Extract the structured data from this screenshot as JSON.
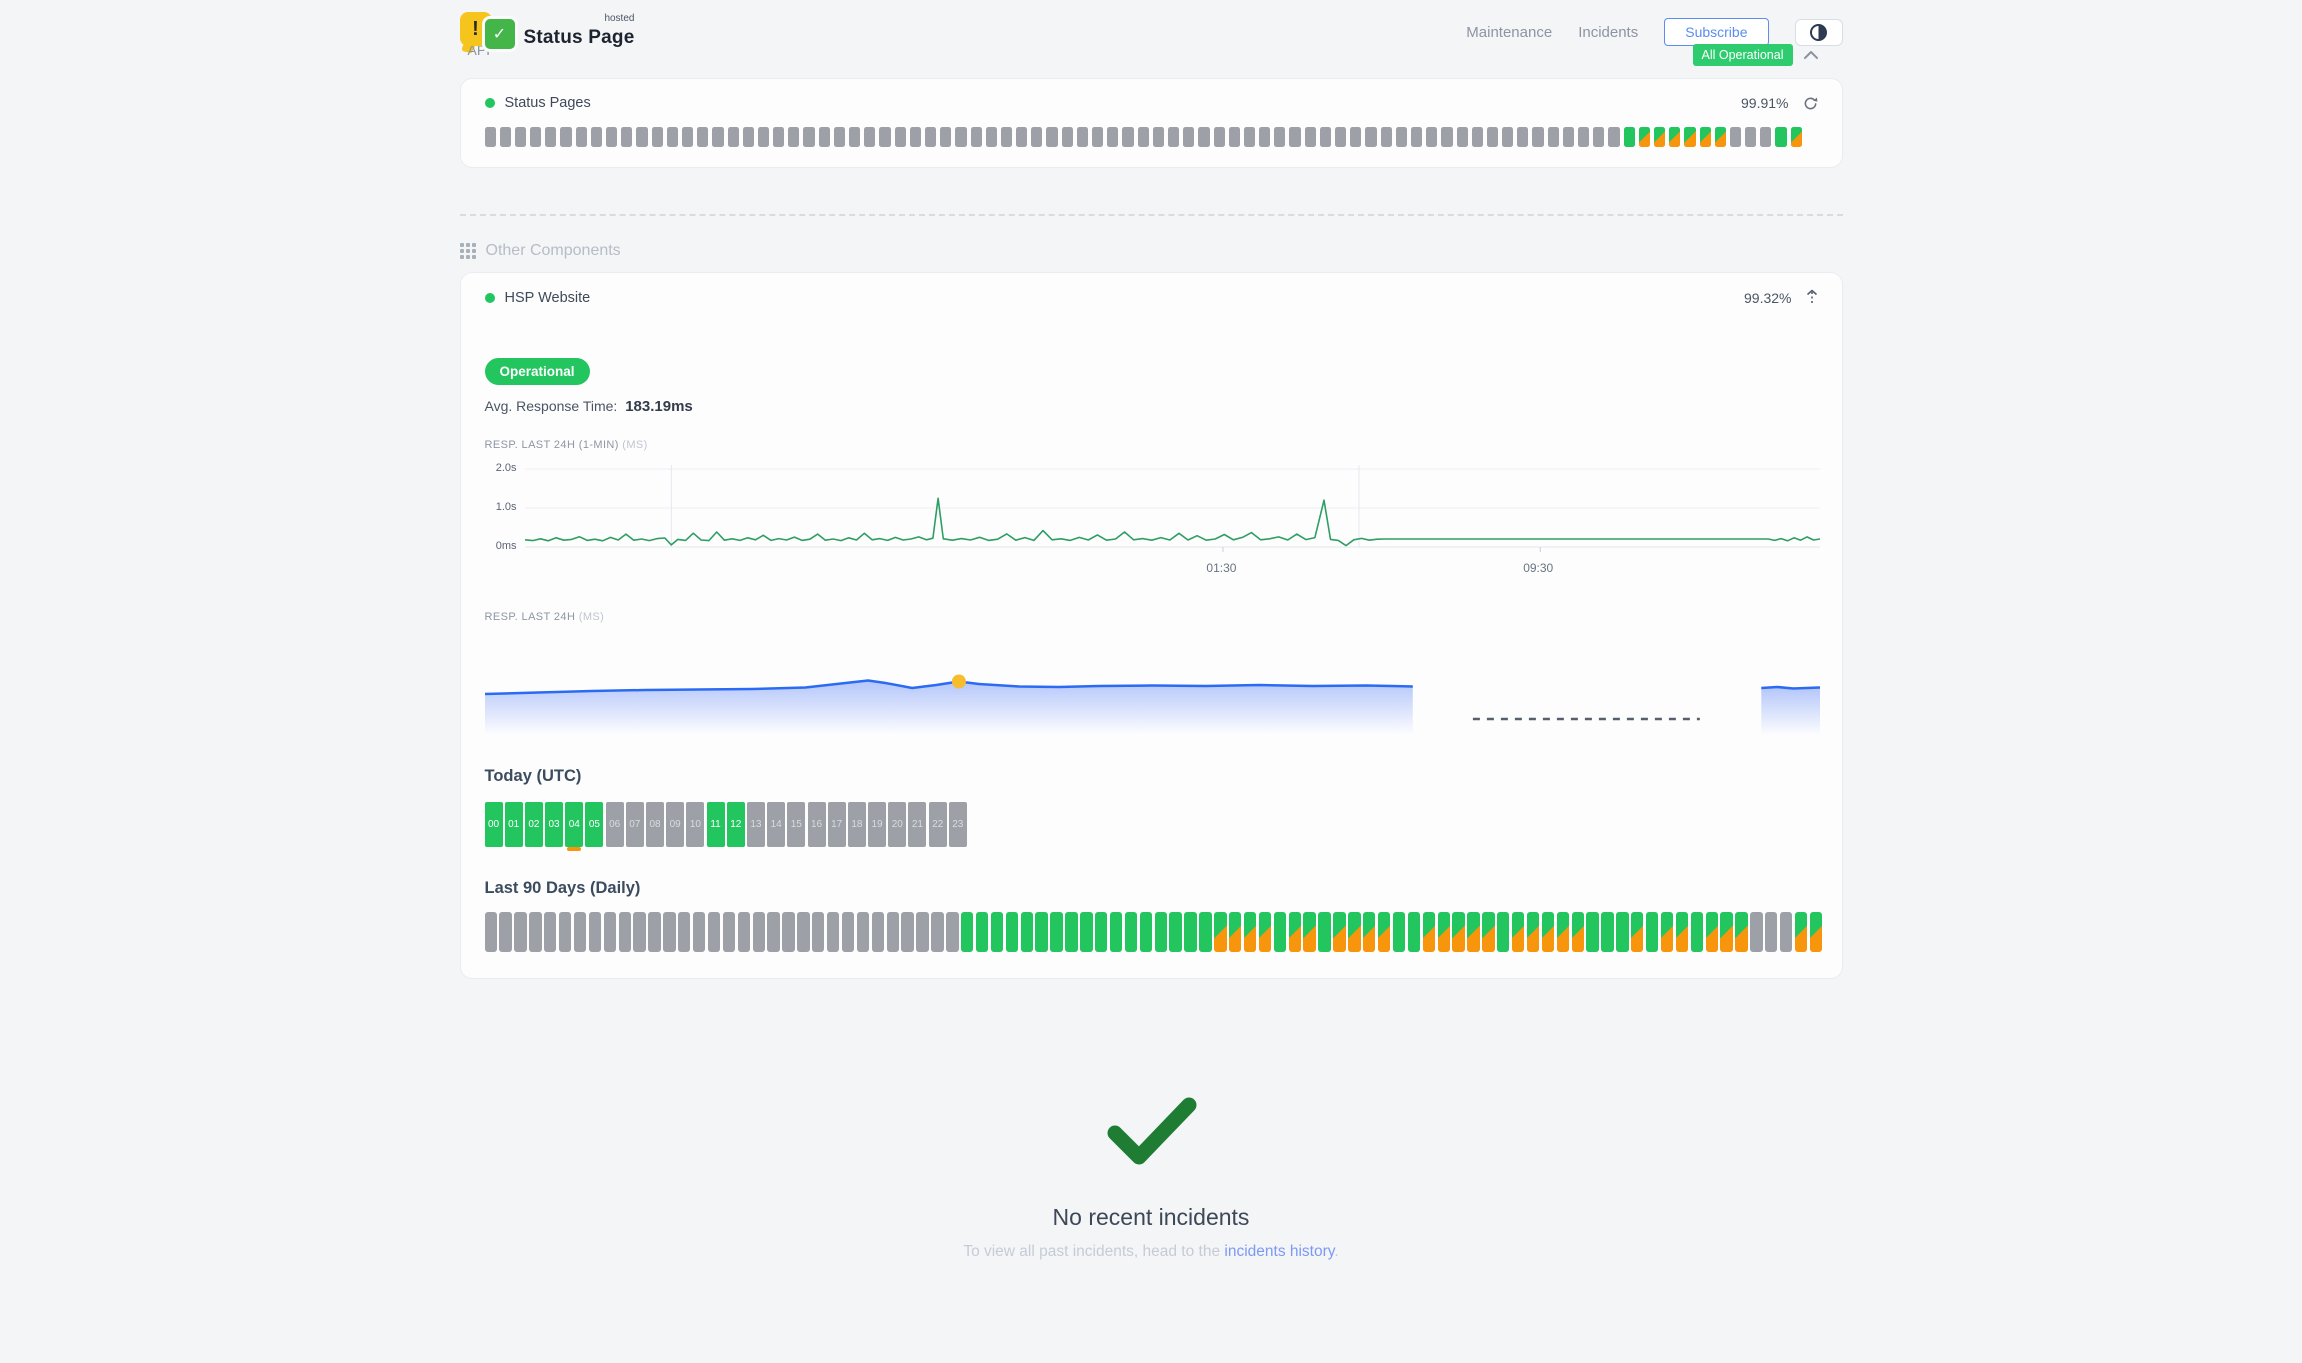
{
  "brand": {
    "hosted": "hosted",
    "name": "Status Page",
    "exclaim": "!",
    "check": "✓"
  },
  "nav": {
    "maintenance": "Maintenance",
    "incidents": "Incidents",
    "subscribe": "Subscribe"
  },
  "status_banner": {
    "label": "All Operational"
  },
  "sections": {
    "api": "API",
    "other": "Other Components"
  },
  "colors": {
    "green": "#22c55e",
    "orange": "#f7950d",
    "gray_bar": "#9da1a7",
    "line_green": "#2e9e63",
    "blue": "#2b6bf3",
    "marker_yellow": "#f8bd2d",
    "link_blue": "#7d99f6",
    "badge_green": "#2ecc6e",
    "check_green": "#1e7d33"
  },
  "status_pages": {
    "name": "Status Pages",
    "uptime": "99.91%",
    "bars": "xxxxxxxxxxxxxxxxxxxxxxxxxxxxxxxxxxxxxxxxxxxxxxxxxxxxxxxxxxxxxxxxxxxxxxxxxxxgssssssxxxgs"
  },
  "hsp_website": {
    "name": "HSP Website",
    "uptime": "99.32%",
    "status": "Operational",
    "avg_label": "Avg. Response Time:",
    "avg_value": "183.19ms",
    "chart1_label": "RESP. LAST 24H (1-MIN)",
    "chart1_unit": "(MS)",
    "chart2_label": "RESP. LAST 24H",
    "chart2_unit": "(MS)",
    "today_title": "Today (UTC)",
    "ninety_title": "Last 90 Days (Daily)",
    "day_bars": "xxxxxxxxxxxxxxxxxxxxxxxxxxxxxxxxgggggggggggggggggssssgssgssssggsssssgsssssgggsgssgsssxxxss"
  },
  "today": {
    "labels": [
      "00",
      "01",
      "02",
      "03",
      "04",
      "05",
      "06",
      "07",
      "08",
      "09",
      "10",
      "11",
      "12",
      "13",
      "14",
      "15",
      "16",
      "17",
      "18",
      "19",
      "20",
      "21",
      "22",
      "23"
    ],
    "pattern": "uuuuuuxxxxxuuxxxxxxxxxxx",
    "partial_index": 4
  },
  "chart_data": [
    {
      "type": "line",
      "title": "RESP. LAST 24H (1-MIN) (MS)",
      "ylabel_ticks": [
        {
          "label": "2.0s",
          "ms": 2000
        },
        {
          "label": "1.0s",
          "ms": 1000
        },
        {
          "label": "0ms",
          "ms": 0
        }
      ],
      "xlabels": [
        {
          "label": "01:30",
          "pos": 0.539
        },
        {
          "label": "09:30",
          "pos": 0.784
        }
      ],
      "vlines": [
        0.113,
        0.644
      ],
      "ticks": [
        0.539,
        0.784
      ],
      "ylim_ms": [
        0,
        2000
      ],
      "stroke": "#2e9e63",
      "points": [
        [
          0,
          185
        ],
        [
          0.006,
          165
        ],
        [
          0.012,
          210
        ],
        [
          0.018,
          160
        ],
        [
          0.024,
          235
        ],
        [
          0.03,
          175
        ],
        [
          0.036,
          195
        ],
        [
          0.042,
          265
        ],
        [
          0.048,
          170
        ],
        [
          0.054,
          200
        ],
        [
          0.06,
          160
        ],
        [
          0.066,
          245
        ],
        [
          0.072,
          180
        ],
        [
          0.078,
          330
        ],
        [
          0.084,
          175
        ],
        [
          0.09,
          205
        ],
        [
          0.096,
          165
        ],
        [
          0.102,
          215
        ],
        [
          0.108,
          230
        ],
        [
          0.113,
          55
        ],
        [
          0.118,
          195
        ],
        [
          0.124,
          170
        ],
        [
          0.13,
          355
        ],
        [
          0.136,
          180
        ],
        [
          0.142,
          165
        ],
        [
          0.148,
          385
        ],
        [
          0.154,
          175
        ],
        [
          0.16,
          210
        ],
        [
          0.166,
          170
        ],
        [
          0.172,
          235
        ],
        [
          0.178,
          185
        ],
        [
          0.184,
          300
        ],
        [
          0.19,
          170
        ],
        [
          0.196,
          215
        ],
        [
          0.202,
          180
        ],
        [
          0.208,
          255
        ],
        [
          0.214,
          170
        ],
        [
          0.22,
          200
        ],
        [
          0.226,
          330
        ],
        [
          0.232,
          175
        ],
        [
          0.238,
          205
        ],
        [
          0.244,
          165
        ],
        [
          0.25,
          235
        ],
        [
          0.256,
          180
        ],
        [
          0.262,
          350
        ],
        [
          0.268,
          185
        ],
        [
          0.274,
          215
        ],
        [
          0.28,
          170
        ],
        [
          0.286,
          245
        ],
        [
          0.292,
          180
        ],
        [
          0.298,
          205
        ],
        [
          0.304,
          260
        ],
        [
          0.31,
          185
        ],
        [
          0.315,
          225
        ],
        [
          0.319,
          1250
        ],
        [
          0.323,
          210
        ],
        [
          0.33,
          175
        ],
        [
          0.337,
          215
        ],
        [
          0.344,
          180
        ],
        [
          0.351,
          250
        ],
        [
          0.358,
          170
        ],
        [
          0.365,
          200
        ],
        [
          0.372,
          335
        ],
        [
          0.379,
          175
        ],
        [
          0.386,
          240
        ],
        [
          0.393,
          170
        ],
        [
          0.4,
          420
        ],
        [
          0.407,
          185
        ],
        [
          0.414,
          210
        ],
        [
          0.421,
          170
        ],
        [
          0.428,
          245
        ],
        [
          0.435,
          180
        ],
        [
          0.442,
          310
        ],
        [
          0.449,
          175
        ],
        [
          0.456,
          205
        ],
        [
          0.463,
          385
        ],
        [
          0.47,
          185
        ],
        [
          0.477,
          215
        ],
        [
          0.484,
          175
        ],
        [
          0.491,
          240
        ],
        [
          0.498,
          180
        ],
        [
          0.505,
          350
        ],
        [
          0.512,
          180
        ],
        [
          0.519,
          290
        ],
        [
          0.526,
          175
        ],
        [
          0.533,
          205
        ],
        [
          0.54,
          320
        ],
        [
          0.547,
          185
        ],
        [
          0.554,
          245
        ],
        [
          0.561,
          370
        ],
        [
          0.568,
          185
        ],
        [
          0.575,
          210
        ],
        [
          0.582,
          260
        ],
        [
          0.589,
          180
        ],
        [
          0.596,
          330
        ],
        [
          0.603,
          190
        ],
        [
          0.61,
          240
        ],
        [
          0.617,
          1200
        ],
        [
          0.622,
          195
        ],
        [
          0.628,
          170
        ],
        [
          0.634,
          35
        ],
        [
          0.64,
          185
        ],
        [
          0.646,
          220
        ],
        [
          0.652,
          175
        ],
        [
          0.658,
          200
        ],
        [
          0.665,
          205
        ],
        [
          0.96,
          205
        ],
        [
          0.965,
          170
        ],
        [
          0.97,
          215
        ],
        [
          0.975,
          160
        ],
        [
          0.98,
          235
        ],
        [
          0.985,
          175
        ],
        [
          0.99,
          260
        ],
        [
          0.995,
          180
        ],
        [
          1,
          205
        ]
      ]
    },
    {
      "type": "area",
      "title": "RESP. LAST 24H (MS)",
      "stroke": "#2b6bf3",
      "marker": {
        "x": 0.355,
        "y": 50.5,
        "color": "#f8bd2d"
      },
      "gap_dash": {
        "y": 88,
        "x0": 0.74,
        "x1": 0.91,
        "color": "#565f6b"
      },
      "segment1": [
        [
          0,
          63
        ],
        [
          0.04,
          61.5
        ],
        [
          0.08,
          60
        ],
        [
          0.12,
          59
        ],
        [
          0.16,
          58.5
        ],
        [
          0.2,
          58
        ],
        [
          0.24,
          56.5
        ],
        [
          0.27,
          52
        ],
        [
          0.287,
          49.5
        ],
        [
          0.3,
          52
        ],
        [
          0.32,
          57
        ],
        [
          0.338,
          54
        ],
        [
          0.355,
          50.5
        ],
        [
          0.37,
          53
        ],
        [
          0.4,
          55.5
        ],
        [
          0.43,
          56
        ],
        [
          0.46,
          55
        ],
        [
          0.5,
          54.5
        ],
        [
          0.54,
          55
        ],
        [
          0.58,
          54
        ],
        [
          0.62,
          55
        ],
        [
          0.66,
          54.5
        ],
        [
          0.695,
          55.5
        ]
      ],
      "segment2": [
        [
          0.956,
          57
        ],
        [
          0.968,
          56
        ],
        [
          0.98,
          57.5
        ],
        [
          1,
          56.5
        ]
      ]
    }
  ],
  "bottom": {
    "title": "No recent incidents",
    "footer_prefix": "To view all past incidents, head to the ",
    "footer_link": "incidents history",
    "footer_suffix": "."
  }
}
